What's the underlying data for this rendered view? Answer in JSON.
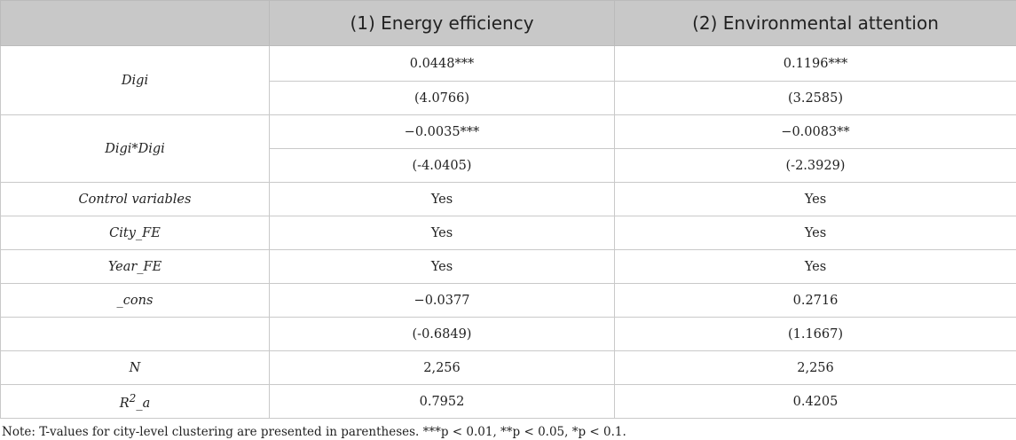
{
  "header": [
    "",
    "(1) Energy efficiency",
    "(2) Environmental attention"
  ],
  "rows": {
    "digi": {
      "label": "Digi",
      "c1": "0.0448***",
      "c2": "0.1196***"
    },
    "digi_t": {
      "c1": "(4.0766)",
      "c2": "(3.2585)"
    },
    "digi2": {
      "label": "Digi*Digi",
      "c1": "−0.0035***",
      "c2": "−0.0083**"
    },
    "digi2_t": {
      "c1": "(-4.0405)",
      "c2": "(-2.3929)"
    },
    "controls": {
      "label": "Control variables",
      "c1": "Yes",
      "c2": "Yes"
    },
    "city_fe": {
      "label": "City_FE",
      "c1": "Yes",
      "c2": "Yes"
    },
    "year_fe": {
      "label": "Year_FE",
      "c1": "Yes",
      "c2": "Yes"
    },
    "cons": {
      "label": "_cons",
      "c1": "−0.0377",
      "c2": "0.2716"
    },
    "cons_t": {
      "label": "",
      "c1": "(-0.6849)",
      "c2": "(1.1667)"
    },
    "n": {
      "label": "N",
      "c1": "2,256",
      "c2": "2,256"
    },
    "r2": {
      "label_base": "R",
      "label_sup": "2",
      "label_sub": "_a",
      "c1": "0.7952",
      "c2": "0.4205"
    }
  },
  "note": "Note: T-values for city-level clustering are presented in parentheses. ***p < 0.01, **p < 0.05, *p < 0.1."
}
